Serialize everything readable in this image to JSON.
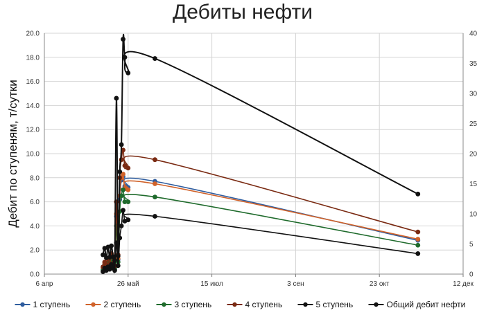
{
  "chart_data": {
    "type": "line",
    "title": "Дебиты нефти",
    "xlabel": "",
    "ylabel": "Дебит по ступеням, т/сутки",
    "x_ticks": [
      "6 апр",
      "26 май",
      "15 июл",
      "3 сен",
      "23 окт",
      "12 дек"
    ],
    "x_tick_days": [
      0,
      50,
      100,
      150,
      200,
      250
    ],
    "xlim_days": [
      0,
      250
    ],
    "y_ticks": [
      "0.0",
      "2.0",
      "4.0",
      "6.0",
      "8.0",
      "10.0",
      "12.0",
      "14.0",
      "16.0",
      "18.0",
      "20.0"
    ],
    "ylim": [
      0,
      20
    ],
    "y2_ticks": [
      "0",
      "5",
      "10",
      "15",
      "20",
      "25",
      "30",
      "35",
      "40"
    ],
    "y2lim": [
      0,
      40
    ],
    "grid": true,
    "legend_position": "bottom",
    "series": [
      {
        "name": "1 ступень",
        "color": "#2e5c9e",
        "axis": "left",
        "x": [
          35,
          36,
          37,
          38,
          39,
          40,
          41,
          42,
          43,
          44,
          45,
          46,
          47,
          48,
          50,
          66,
          223
        ],
        "y": [
          0.4,
          0.8,
          0.5,
          1.0,
          0.6,
          1.3,
          0.7,
          0.5,
          4.8,
          1.2,
          6.2,
          7.8,
          8.1,
          7.3,
          7.2,
          7.7,
          2.8
        ]
      },
      {
        "name": "2 ступень",
        "color": "#d0622a",
        "axis": "left",
        "x": [
          35,
          36,
          37,
          38,
          39,
          40,
          41,
          42,
          43,
          44,
          45,
          46,
          47,
          48,
          50,
          66,
          223
        ],
        "y": [
          0.5,
          0.9,
          0.6,
          1.1,
          0.7,
          1.4,
          0.8,
          0.6,
          5.0,
          1.3,
          6.5,
          8.0,
          8.3,
          7.1,
          7.0,
          7.5,
          2.9
        ]
      },
      {
        "name": "3 ступень",
        "color": "#1f6b2c",
        "axis": "left",
        "x": [
          35,
          36,
          37,
          38,
          39,
          40,
          41,
          42,
          43,
          44,
          45,
          46,
          47,
          48,
          50,
          66,
          223
        ],
        "y": [
          0.3,
          0.7,
          0.4,
          0.9,
          0.5,
          1.1,
          0.6,
          0.4,
          4.0,
          1.0,
          5.2,
          6.5,
          7.0,
          6.0,
          6.0,
          6.4,
          2.4
        ]
      },
      {
        "name": "4 ступень",
        "color": "#7a2a12",
        "axis": "left",
        "x": [
          35,
          36,
          37,
          38,
          39,
          40,
          41,
          42,
          43,
          44,
          45,
          46,
          47,
          48,
          50,
          66,
          223
        ],
        "y": [
          0.6,
          1.0,
          0.7,
          1.3,
          0.8,
          1.7,
          0.9,
          0.7,
          6.0,
          1.6,
          8.0,
          9.5,
          10.3,
          9.0,
          8.8,
          9.5,
          3.5
        ]
      },
      {
        "name": "5 ступень",
        "color": "#111111",
        "axis": "left",
        "x": [
          35,
          36,
          37,
          38,
          39,
          40,
          41,
          42,
          43,
          44,
          45,
          46,
          47,
          48,
          50,
          66,
          223
        ],
        "y": [
          0.2,
          0.5,
          0.3,
          0.6,
          0.4,
          0.8,
          0.5,
          0.3,
          2.6,
          0.7,
          3.0,
          4.0,
          5.3,
          4.4,
          4.5,
          4.8,
          1.7
        ]
      },
      {
        "name": "Общий дебит нефти",
        "color": "#111111",
        "axis": "right",
        "x": [
          35,
          36,
          37,
          38,
          39,
          40,
          41,
          42,
          43,
          44,
          45,
          46,
          47,
          48,
          50,
          66,
          223
        ],
        "y": [
          3.2,
          4.3,
          2.7,
          4.5,
          2.8,
          4.7,
          2.9,
          2.3,
          29.2,
          3.0,
          17.0,
          21.5,
          39.0,
          36.0,
          33.4,
          35.8,
          13.3
        ]
      }
    ]
  }
}
